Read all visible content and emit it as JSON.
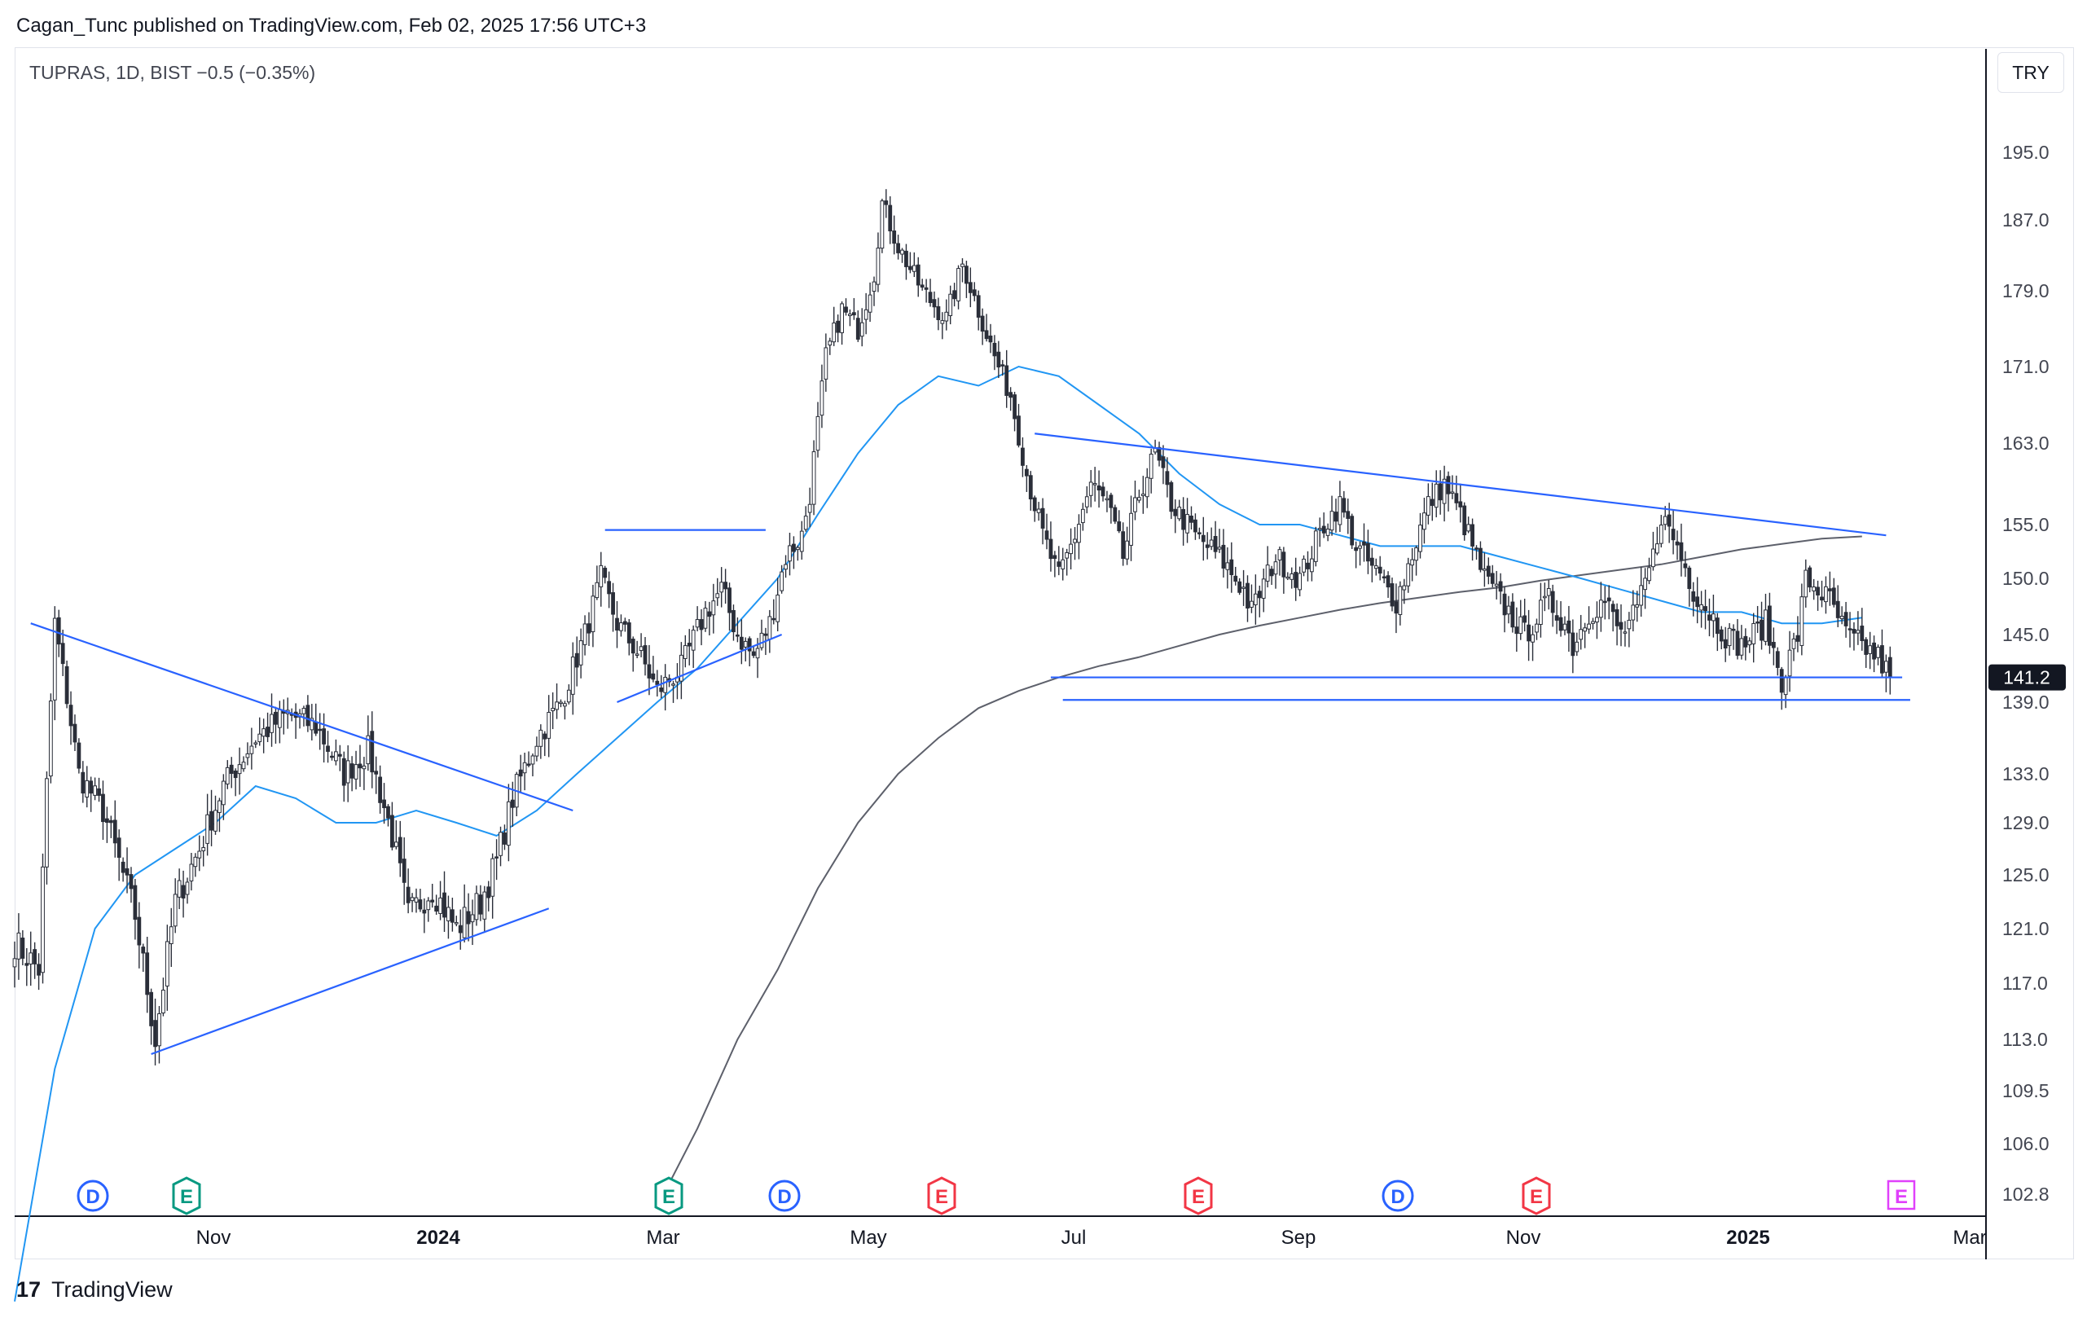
{
  "header": {
    "text": "Cagan_Tunc published on TradingView.com, Feb 02, 2025 17:56 UTC+3"
  },
  "legend": {
    "text": "TUPRAS, 1D, BIST  −0.5 (−0.35%)"
  },
  "currency_button": {
    "label": "TRY"
  },
  "footer": {
    "logo_mark": "17",
    "logo_text": "TradingView"
  },
  "colors": {
    "candle": "#2a2e39",
    "trendline": "#2962ff",
    "ma_fast": "#2196f3",
    "ma_slow": "#5d606b",
    "price_badge_bg": "#131722",
    "marker_d": "#2962ff",
    "marker_e": "#089981",
    "marker_e_red": "#f23645",
    "marker_e_future": "#e040fb"
  },
  "chart_data": {
    "type": "candlestick",
    "symbol": "TUPRAS",
    "interval": "1D",
    "exchange": "BIST",
    "change": "−0.5 (−0.35%)",
    "currency": "TRY",
    "y_ticks": [
      "195.0",
      "187.0",
      "179.0",
      "171.0",
      "163.0",
      "155.0",
      "150.0",
      "145.0",
      "139.0",
      "133.0",
      "129.0",
      "125.0",
      "121.0",
      "117.0",
      "113.0",
      "109.5",
      "106.0",
      "102.8"
    ],
    "x_ticks": [
      {
        "label": "Nov",
        "bold": false
      },
      {
        "label": "2024",
        "bold": true
      },
      {
        "label": "Mar",
        "bold": false
      },
      {
        "label": "May",
        "bold": false
      },
      {
        "label": "Jul",
        "bold": false
      },
      {
        "label": "Sep",
        "bold": false
      },
      {
        "label": "Nov",
        "bold": false
      },
      {
        "label": "2025",
        "bold": true
      },
      {
        "label": "Mar",
        "bold": false
      }
    ],
    "last_price": "141.2",
    "price_path": [
      [
        0,
        120
      ],
      [
        6,
        118
      ],
      [
        10,
        146
      ],
      [
        16,
        133
      ],
      [
        22,
        130
      ],
      [
        30,
        122
      ],
      [
        35,
        113
      ],
      [
        40,
        123
      ],
      [
        46,
        127
      ],
      [
        52,
        132
      ],
      [
        60,
        136
      ],
      [
        68,
        138
      ],
      [
        75,
        137
      ],
      [
        82,
        133
      ],
      [
        88,
        135
      ],
      [
        94,
        128
      ],
      [
        98,
        122
      ],
      [
        104,
        124
      ],
      [
        110,
        121
      ],
      [
        116,
        123
      ],
      [
        120,
        126
      ],
      [
        124,
        131
      ],
      [
        130,
        136
      ],
      [
        136,
        139
      ],
      [
        142,
        145
      ],
      [
        146,
        150
      ],
      [
        150,
        146
      ],
      [
        156,
        143
      ],
      [
        160,
        140
      ],
      [
        166,
        142
      ],
      [
        172,
        147
      ],
      [
        176,
        149
      ],
      [
        180,
        145
      ],
      [
        184,
        143
      ],
      [
        188,
        146
      ],
      [
        192,
        152
      ],
      [
        196,
        154
      ],
      [
        198,
        158
      ],
      [
        202,
        172
      ],
      [
        206,
        177
      ],
      [
        210,
        175
      ],
      [
        214,
        181
      ],
      [
        216,
        189
      ],
      [
        220,
        184
      ],
      [
        226,
        179
      ],
      [
        232,
        176
      ],
      [
        236,
        182
      ],
      [
        240,
        177
      ],
      [
        244,
        172
      ],
      [
        248,
        168
      ],
      [
        252,
        160
      ],
      [
        256,
        154
      ],
      [
        260,
        150
      ],
      [
        264,
        154
      ],
      [
        268,
        159
      ],
      [
        272,
        157
      ],
      [
        276,
        152
      ],
      [
        280,
        158
      ],
      [
        284,
        162
      ],
      [
        288,
        157
      ],
      [
        294,
        154
      ],
      [
        300,
        152
      ],
      [
        306,
        149
      ],
      [
        308,
        147
      ],
      [
        314,
        152
      ],
      [
        320,
        150
      ],
      [
        326,
        155
      ],
      [
        330,
        157
      ],
      [
        334,
        153
      ],
      [
        340,
        150
      ],
      [
        344,
        148
      ],
      [
        346,
        150
      ],
      [
        352,
        157
      ],
      [
        356,
        159
      ],
      [
        360,
        156
      ],
      [
        366,
        150
      ],
      [
        372,
        147
      ],
      [
        376,
        145
      ],
      [
        382,
        148
      ],
      [
        386,
        146
      ],
      [
        388,
        144
      ],
      [
        392,
        147
      ],
      [
        396,
        148
      ],
      [
        400,
        145
      ],
      [
        404,
        147
      ],
      [
        408,
        152
      ],
      [
        410,
        156
      ],
      [
        414,
        153
      ],
      [
        418,
        149
      ],
      [
        422,
        147
      ],
      [
        426,
        145
      ],
      [
        430,
        144
      ],
      [
        436,
        146
      ],
      [
        440,
        141
      ],
      [
        444,
        145
      ],
      [
        446,
        150
      ],
      [
        452,
        148
      ],
      [
        456,
        145
      ],
      [
        460,
        144
      ],
      [
        464,
        143
      ],
      [
        467,
        141.2
      ]
    ],
    "overlays": {
      "moving_average_fast": [
        [
          0,
          96
        ],
        [
          10,
          111
        ],
        [
          20,
          121
        ],
        [
          30,
          125
        ],
        [
          40,
          127
        ],
        [
          50,
          129
        ],
        [
          60,
          132
        ],
        [
          70,
          131
        ],
        [
          80,
          129
        ],
        [
          90,
          129
        ],
        [
          100,
          130
        ],
        [
          110,
          129
        ],
        [
          120,
          128
        ],
        [
          130,
          130
        ],
        [
          140,
          133
        ],
        [
          150,
          136
        ],
        [
          160,
          139
        ],
        [
          170,
          142
        ],
        [
          180,
          146
        ],
        [
          190,
          150
        ],
        [
          200,
          156
        ],
        [
          210,
          162
        ],
        [
          220,
          167
        ],
        [
          230,
          170
        ],
        [
          240,
          169
        ],
        [
          250,
          171
        ],
        [
          260,
          170
        ],
        [
          270,
          167
        ],
        [
          280,
          164
        ],
        [
          290,
          160
        ],
        [
          300,
          157
        ],
        [
          310,
          155
        ],
        [
          320,
          155
        ],
        [
          330,
          154
        ],
        [
          340,
          153
        ],
        [
          350,
          153
        ],
        [
          360,
          153
        ],
        [
          370,
          152
        ],
        [
          380,
          151
        ],
        [
          390,
          150
        ],
        [
          400,
          149
        ],
        [
          410,
          148
        ],
        [
          420,
          147
        ],
        [
          430,
          147
        ],
        [
          440,
          146
        ],
        [
          450,
          146
        ],
        [
          460,
          146.5
        ]
      ],
      "moving_average_slow": [
        [
          160,
          102
        ],
        [
          170,
          107
        ],
        [
          180,
          113
        ],
        [
          190,
          118
        ],
        [
          200,
          124
        ],
        [
          210,
          129
        ],
        [
          220,
          133
        ],
        [
          230,
          136
        ],
        [
          240,
          138.5
        ],
        [
          250,
          140
        ],
        [
          260,
          141.2
        ],
        [
          270,
          142.2
        ],
        [
          280,
          143
        ],
        [
          290,
          144
        ],
        [
          300,
          145
        ],
        [
          310,
          145.8
        ],
        [
          320,
          146.5
        ],
        [
          330,
          147.2
        ],
        [
          340,
          147.8
        ],
        [
          350,
          148.3
        ],
        [
          360,
          148.8
        ],
        [
          370,
          149.2
        ],
        [
          380,
          149.8
        ],
        [
          390,
          150.3
        ],
        [
          400,
          150.8
        ],
        [
          410,
          151.3
        ],
        [
          420,
          152
        ],
        [
          430,
          152.7
        ],
        [
          440,
          153.2
        ],
        [
          450,
          153.7
        ],
        [
          460,
          153.9
        ]
      ]
    },
    "drawings": [
      {
        "kind": "trendline",
        "from": [
          4,
          146
        ],
        "to": [
          139,
          130
        ]
      },
      {
        "kind": "trendline",
        "from": [
          34,
          112
        ],
        "to": [
          133,
          122.5
        ]
      },
      {
        "kind": "horizontal_segment",
        "from": [
          147,
          154.5
        ],
        "to": [
          187,
          154.5
        ]
      },
      {
        "kind": "trendline",
        "from": [
          150,
          139
        ],
        "to": [
          191,
          145
        ]
      },
      {
        "kind": "trendline",
        "from": [
          254,
          164
        ],
        "to": [
          466,
          154
        ]
      },
      {
        "kind": "horizontal_segment",
        "from": [
          258,
          141.2
        ],
        "to": [
          470,
          141.2
        ]
      },
      {
        "kind": "horizontal_segment",
        "from": [
          261,
          139.2
        ],
        "to": [
          472,
          139.2
        ]
      }
    ],
    "event_markers": [
      {
        "label": "D",
        "kind": "dividend"
      },
      {
        "label": "E",
        "kind": "earnings"
      },
      {
        "label": "E",
        "kind": "earnings"
      },
      {
        "label": "D",
        "kind": "dividend"
      },
      {
        "label": "E",
        "kind": "earnings_red"
      },
      {
        "label": "E",
        "kind": "earnings_red"
      },
      {
        "label": "D",
        "kind": "dividend"
      },
      {
        "label": "E",
        "kind": "earnings_red"
      },
      {
        "label": "E",
        "kind": "earnings_future"
      }
    ]
  }
}
